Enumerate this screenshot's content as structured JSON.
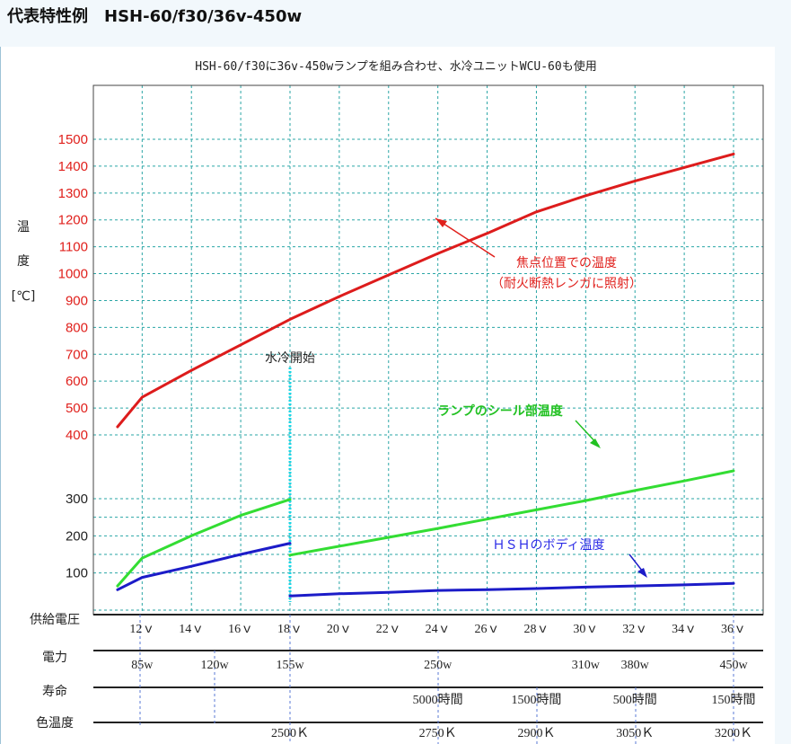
{
  "header": {
    "title": "代表特性例　HSH-60/f30/36v-450w"
  },
  "chart_data": {
    "type": "line",
    "subtitle": "HSH-60/f30に36v-450wランプを組み合わせ、水冷ユニットWCU-60も使用",
    "ylabel": [
      "温",
      "度",
      "[℃]"
    ],
    "y_ticks_upper": [
      "1500",
      "1400",
      "1300",
      "1200",
      "1100",
      "1000",
      "900",
      "800",
      "700",
      "600",
      "500",
      "400"
    ],
    "y_ticks_lower": [
      "300",
      "200",
      "100"
    ],
    "y_range_upper": [
      400,
      1500
    ],
    "y_range_lower": [
      0,
      350
    ],
    "grid": true,
    "x": [
      11,
      12,
      14,
      16,
      18,
      20,
      22,
      24,
      26,
      28,
      30,
      32,
      34,
      36
    ],
    "series": [
      {
        "name": "焦点位置での温度（耐火断熱レンガに照射）",
        "color": "#dd1c1c",
        "x": [
          11,
          12,
          14,
          16,
          18,
          20,
          22,
          24,
          26,
          28,
          30,
          32,
          34,
          36
        ],
        "values": [
          430,
          540,
          640,
          735,
          830,
          915,
          995,
          1075,
          1150,
          1230,
          1290,
          1345,
          1395,
          1445
        ]
      },
      {
        "name": "ランプのシール部温度",
        "color": "#33dd33",
        "segments": [
          {
            "x": [
              11,
              12,
              14,
              16,
              18
            ],
            "values": [
              65,
              140,
              200,
              255,
              298
            ]
          },
          {
            "x": [
              18,
              20,
              22,
              24,
              26,
              28,
              30,
              32,
              34,
              36
            ],
            "values": [
              148,
              172,
              196,
              220,
              245,
              270,
              295,
              322,
              348,
              375
            ]
          }
        ]
      },
      {
        "name": "ＨＳＨのボディ温度",
        "color": "#1c1cc8",
        "segments": [
          {
            "x": [
              11,
              12,
              14,
              16,
              18
            ],
            "values": [
              55,
              88,
              118,
              150,
              180
            ]
          },
          {
            "x": [
              18,
              20,
              22,
              24,
              26,
              28,
              30,
              32,
              34,
              36
            ],
            "values": [
              38,
              44,
              48,
              53,
              55,
              58,
              62,
              65,
              68,
              72
            ]
          }
        ]
      }
    ],
    "annotations": {
      "water_cool_start": "水冷開始",
      "focus_label_1": "焦点位置での温度",
      "focus_label_2": "（耐火断熱レンガに照射）",
      "seal_label": "ランプのシール部温度",
      "body_label": "ＨＳＨのボディ温度"
    },
    "table": {
      "rows": [
        {
          "label": "供給電圧",
          "cells": [
            {
              "x": 12,
              "text": "12ｖ"
            },
            {
              "x": 14,
              "text": "14ｖ"
            },
            {
              "x": 16,
              "text": "16ｖ"
            },
            {
              "x": 18,
              "text": "18ｖ"
            },
            {
              "x": 20,
              "text": "20ｖ"
            },
            {
              "x": 22,
              "text": "22ｖ"
            },
            {
              "x": 24,
              "text": "24ｖ"
            },
            {
              "x": 26,
              "text": "26ｖ"
            },
            {
              "x": 28,
              "text": "28ｖ"
            },
            {
              "x": 30,
              "text": "30ｖ"
            },
            {
              "x": 32,
              "text": "32ｖ"
            },
            {
              "x": 34,
              "text": "34ｖ"
            },
            {
              "x": 36,
              "text": "36ｖ"
            }
          ]
        },
        {
          "label": "電力",
          "cells": [
            {
              "x": 12,
              "text": "85w"
            },
            {
              "x": 15,
              "text": "120w"
            },
            {
              "x": 18,
              "text": "155w"
            },
            {
              "x": 24,
              "text": "250w"
            },
            {
              "x": 30,
              "text": "310w"
            },
            {
              "x": 32,
              "text": "380w"
            },
            {
              "x": 36,
              "text": "450w"
            }
          ]
        },
        {
          "label": "寿命",
          "cells": [
            {
              "x": 24,
              "text": "5000時間"
            },
            {
              "x": 28,
              "text": "1500時間"
            },
            {
              "x": 32,
              "text": "500時間"
            },
            {
              "x": 36,
              "text": "150時間"
            }
          ]
        },
        {
          "label": "色温度",
          "cells": [
            {
              "x": 18,
              "text": "2500Ｋ"
            },
            {
              "x": 24,
              "text": "2750Ｋ"
            },
            {
              "x": 28,
              "text": "2900Ｋ"
            },
            {
              "x": 32,
              "text": "3050Ｋ"
            },
            {
              "x": 36,
              "text": "3200Ｋ"
            }
          ]
        }
      ]
    }
  }
}
